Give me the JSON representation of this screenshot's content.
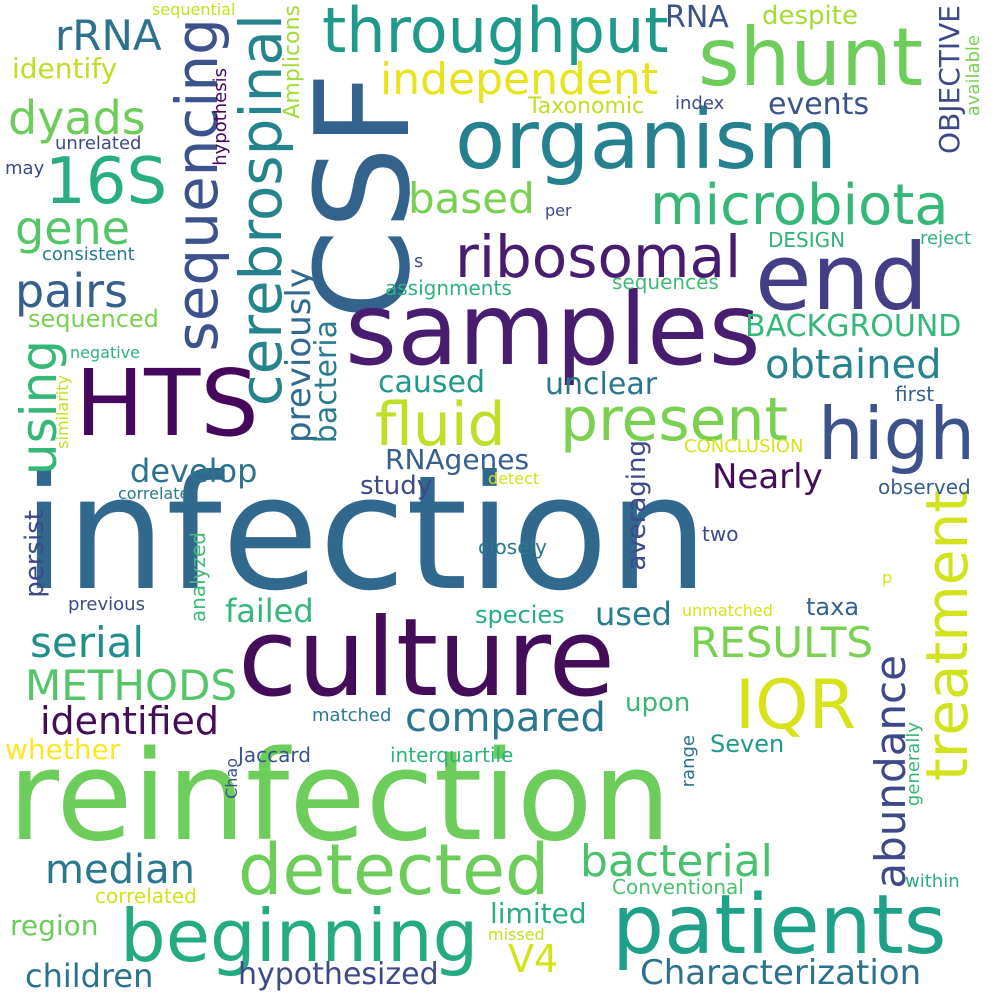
{
  "word_cloud": {
    "words": [
      "infection",
      "reinfection",
      "culture",
      "CSF",
      "samples",
      "organism",
      "patients",
      "end",
      "shunt",
      "HTS",
      "beginning",
      "detected",
      "treatment",
      "high",
      "throughput",
      "sequencing",
      "cerebrospinal",
      "microbiota",
      "ribosomal",
      "fluid",
      "present",
      "IQR",
      "16S",
      "obtained",
      "abundance",
      "bacterial",
      "independent",
      "median",
      "rRNA",
      "METHODS",
      "identified",
      "compared",
      "RESULTS",
      "pairs",
      "dyads",
      "gene",
      "using",
      "based",
      "previously",
      "serial",
      "Characterization",
      "children",
      "hypothesized",
      "V4",
      "develop",
      "BACKGROUND",
      "Nearly",
      "caused",
      "unclear",
      "bacteria",
      "failed",
      "RNAgenes",
      "identify",
      "study",
      "whether",
      "region",
      "species",
      "used",
      "limited",
      "events",
      "RNA",
      "despite",
      "OBJECTIVE",
      "persist",
      "averaging",
      "taxa",
      "upon",
      "Seven",
      "Taxonomic",
      "Amplicons",
      "sequenced",
      "correlated",
      "Conventional",
      "DESIGN",
      "assignments",
      "sequences",
      "CONCLUSION",
      "matched",
      "analyzed",
      "first",
      "observed",
      "closely",
      "two",
      "previous",
      "index",
      "interquartile",
      "Jaccard",
      "detect",
      "range",
      "generally",
      "available",
      "consistent",
      "negative",
      "hypothesis",
      "unrelated",
      "may",
      "similarity",
      "correlate",
      "missed",
      "unmatched",
      "per",
      "within",
      "reject",
      "Chao",
      "p",
      "s",
      "sequential"
    ]
  }
}
